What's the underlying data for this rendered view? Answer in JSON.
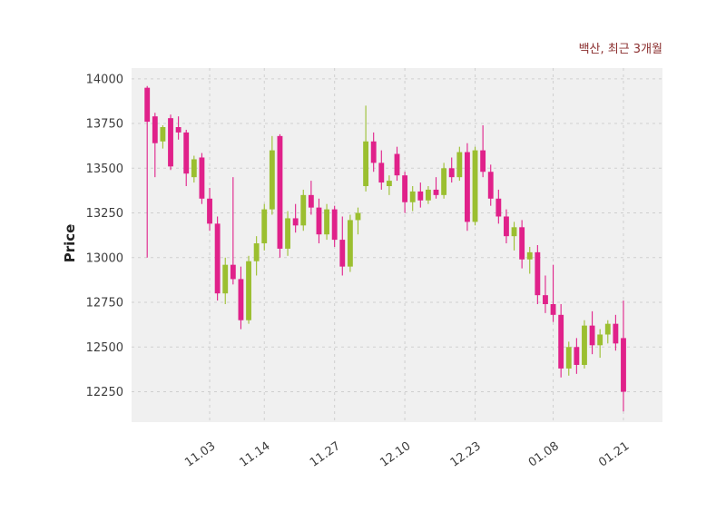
{
  "chart_data": {
    "type": "candlestick",
    "title": "백산, 최근 3개월",
    "ylabel": "Price",
    "xlabel": "",
    "grid": true,
    "legend": false,
    "ylim": [
      12080,
      14060
    ],
    "yticks": [
      12250,
      12500,
      12750,
      13000,
      13250,
      13500,
      13750,
      14000
    ],
    "x_ticks": [
      {
        "label": "11.03",
        "index": 8
      },
      {
        "label": "11.14",
        "index": 15
      },
      {
        "label": "11.27",
        "index": 24
      },
      {
        "label": "12.10",
        "index": 33
      },
      {
        "label": "12.23",
        "index": 42
      },
      {
        "label": "01.08",
        "index": 52
      },
      {
        "label": "01.21",
        "index": 61
      }
    ],
    "colors": {
      "up": "#9bbf30",
      "down": "#e0218a",
      "grid": "#cfcfcf",
      "plot_bg": "#f0f0f0",
      "tick_text": "#3d3d3d",
      "title_text": "#8b2f2f",
      "ylabel_text": "#222222"
    },
    "candles": [
      [
        13950,
        13960,
        13000,
        13760
      ],
      [
        13790,
        13810,
        13450,
        13640
      ],
      [
        13650,
        13740,
        13610,
        13730
      ],
      [
        13780,
        13800,
        13490,
        13510
      ],
      [
        13730,
        13790,
        13660,
        13700
      ],
      [
        13700,
        13715,
        13400,
        13470
      ],
      [
        13450,
        13570,
        13420,
        13550
      ],
      [
        13560,
        13585,
        13300,
        13330
      ],
      [
        13330,
        13390,
        13150,
        13190
      ],
      [
        13190,
        13230,
        12760,
        12800
      ],
      [
        12800,
        13000,
        12740,
        12960
      ],
      [
        12960,
        13450,
        12850,
        12880
      ],
      [
        12880,
        12950,
        12600,
        12650
      ],
      [
        12650,
        13010,
        12630,
        12980
      ],
      [
        12980,
        13120,
        12900,
        13080
      ],
      [
        13080,
        13300,
        13040,
        13270
      ],
      [
        13270,
        13680,
        13240,
        13600
      ],
      [
        13680,
        13690,
        13000,
        13050
      ],
      [
        13050,
        13260,
        13010,
        13220
      ],
      [
        13220,
        13300,
        13140,
        13180
      ],
      [
        13180,
        13380,
        13150,
        13350
      ],
      [
        13350,
        13430,
        13240,
        13280
      ],
      [
        13280,
        13330,
        13080,
        13130
      ],
      [
        13130,
        13300,
        13100,
        13270
      ],
      [
        13270,
        13290,
        13060,
        13100
      ],
      [
        13100,
        13230,
        12900,
        12950
      ],
      [
        12950,
        13240,
        12920,
        13210
      ],
      [
        13210,
        13280,
        13130,
        13250
      ],
      [
        13400,
        13850,
        13370,
        13650
      ],
      [
        13650,
        13700,
        13480,
        13530
      ],
      [
        13530,
        13600,
        13380,
        13420
      ],
      [
        13400,
        13460,
        13350,
        13430
      ],
      [
        13580,
        13620,
        13430,
        13460
      ],
      [
        13460,
        13480,
        13250,
        13310
      ],
      [
        13310,
        13400,
        13260,
        13370
      ],
      [
        13370,
        13420,
        13280,
        13320
      ],
      [
        13320,
        13400,
        13300,
        13380
      ],
      [
        13380,
        13450,
        13330,
        13350
      ],
      [
        13350,
        13530,
        13330,
        13500
      ],
      [
        13500,
        13560,
        13420,
        13450
      ],
      [
        13450,
        13620,
        13430,
        13590
      ],
      [
        13590,
        13640,
        13150,
        13200
      ],
      [
        13200,
        13620,
        13180,
        13600
      ],
      [
        13600,
        13740,
        13450,
        13480
      ],
      [
        13480,
        13520,
        13290,
        13330
      ],
      [
        13330,
        13380,
        13190,
        13230
      ],
      [
        13230,
        13270,
        13080,
        13120
      ],
      [
        13120,
        13200,
        13040,
        13170
      ],
      [
        13170,
        13210,
        12940,
        12990
      ],
      [
        12990,
        13060,
        12910,
        13030
      ],
      [
        13030,
        13070,
        12740,
        12790
      ],
      [
        12790,
        12900,
        12690,
        12740
      ],
      [
        12740,
        12960,
        12640,
        12680
      ],
      [
        12680,
        12740,
        12330,
        12380
      ],
      [
        12380,
        12530,
        12340,
        12500
      ],
      [
        12500,
        12550,
        12350,
        12400
      ],
      [
        12400,
        12650,
        12380,
        12620
      ],
      [
        12620,
        12700,
        12460,
        12510
      ],
      [
        12510,
        12600,
        12440,
        12570
      ],
      [
        12570,
        12650,
        12520,
        12630
      ],
      [
        12630,
        12680,
        12480,
        12520
      ],
      [
        12550,
        12760,
        12140,
        12250
      ]
    ]
  }
}
